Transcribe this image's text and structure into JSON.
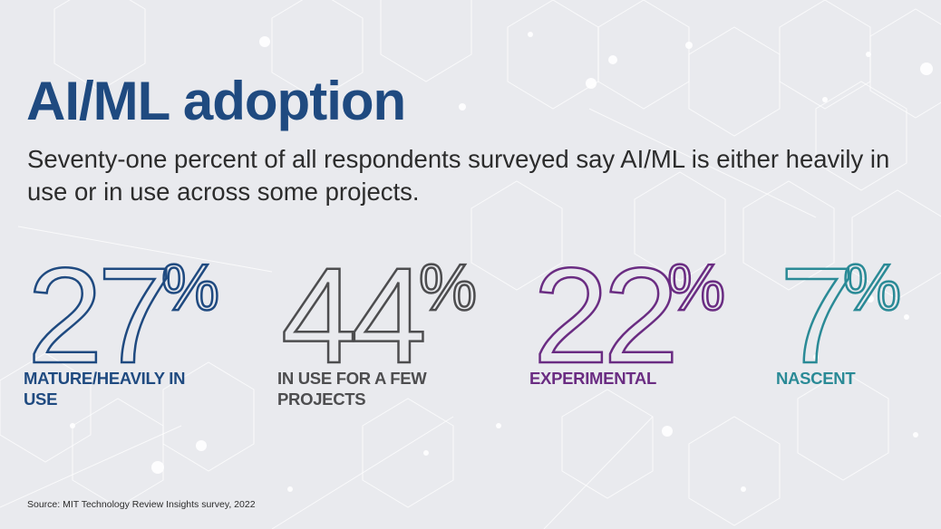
{
  "title": "AI/ML adoption",
  "subtitle": "Seventy-one percent of all respondents surveyed say AI/ML is either heavily in use or in use across some projects.",
  "stats": [
    {
      "value": "27",
      "unit": "%",
      "label": "MATURE/HEAVILY IN USE",
      "color": "#1f4a80"
    },
    {
      "value": "44",
      "unit": "%",
      "label": "IN USE FOR A FEW PROJECTS",
      "color": "#4d4d4f"
    },
    {
      "value": "22",
      "unit": "%",
      "label": "EXPERIMENTAL",
      "color": "#6a2c82"
    },
    {
      "value": "7",
      "unit": "%",
      "label": "NASCENT",
      "color": "#2a8a96"
    }
  ],
  "source": "Source: MIT Technology Review Insights survey, 2022"
}
